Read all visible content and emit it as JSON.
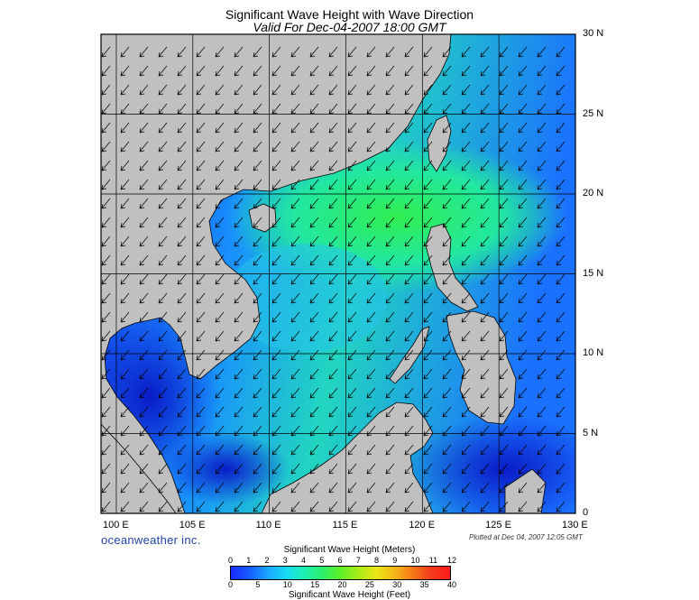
{
  "title": "Significant Wave Height with Wave Direction",
  "subtitle": "Valid For Dec-04-2007 18:00 GMT",
  "brand": "oceanweather inc.",
  "plotted": "Plotted at Dec 04, 2007 12:05 GMT",
  "map": {
    "lon_labels": [
      "100 E",
      "105 E",
      "110 E",
      "115 E",
      "120 E",
      "125 E",
      "130 E"
    ],
    "lat_labels": [
      "30 N",
      "25 N",
      "20 N",
      "15 N",
      "10 N",
      "5 N",
      "0"
    ],
    "lon_range": [
      99,
      130
    ],
    "lat_range": [
      0,
      30
    ],
    "land_color": "#c0c0c0",
    "ocean_low_color": "#1a2aff",
    "ocean_high_color": "#2ef06a",
    "wave_direction": "from northeast toward southwest"
  },
  "colorbar": {
    "meters_title": "Significant Wave Height (Meters)",
    "feet_title": "Significant Wave Height (Feet)",
    "meters_ticks": [
      "0",
      "1",
      "2",
      "3",
      "4",
      "5",
      "6",
      "7",
      "8",
      "9",
      "10",
      "11",
      "12"
    ],
    "feet_ticks": [
      "0",
      "5",
      "10",
      "15",
      "20",
      "25",
      "30",
      "35",
      "40"
    ]
  }
}
